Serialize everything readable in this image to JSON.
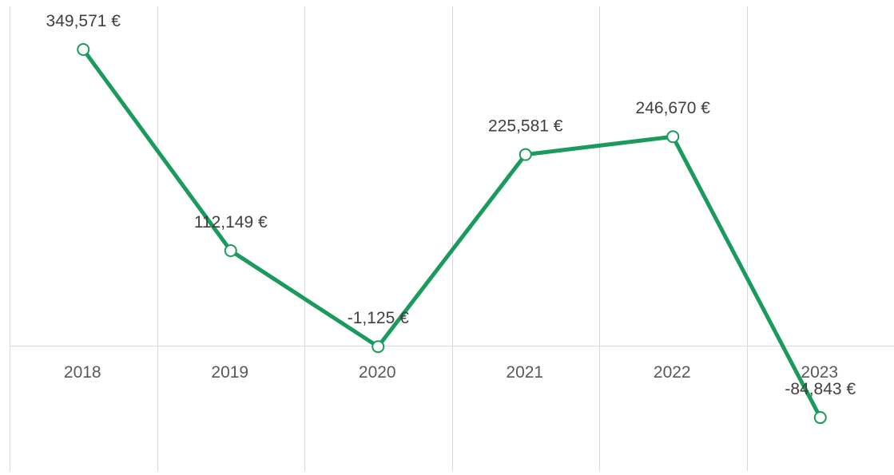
{
  "chart_data": {
    "type": "line",
    "categories": [
      "2018",
      "2019",
      "2020",
      "2021",
      "2022",
      "2023"
    ],
    "series": [
      {
        "values": [
          349571,
          112149,
          -1125,
          225581,
          246670,
          -84843
        ],
        "data_labels": [
          "349,571 €",
          "112,149 €",
          "-1,125 €",
          "225,581 €",
          "246,670 €",
          "-84,843 €"
        ]
      }
    ],
    "title": "",
    "xlabel": "",
    "ylabel": "",
    "ylim": [
      -150000,
      350000
    ],
    "grid": "vertical category gridlines",
    "legend": "none",
    "colors": {
      "line": "#1a9a5c",
      "grid": "#d9d9d9"
    }
  }
}
